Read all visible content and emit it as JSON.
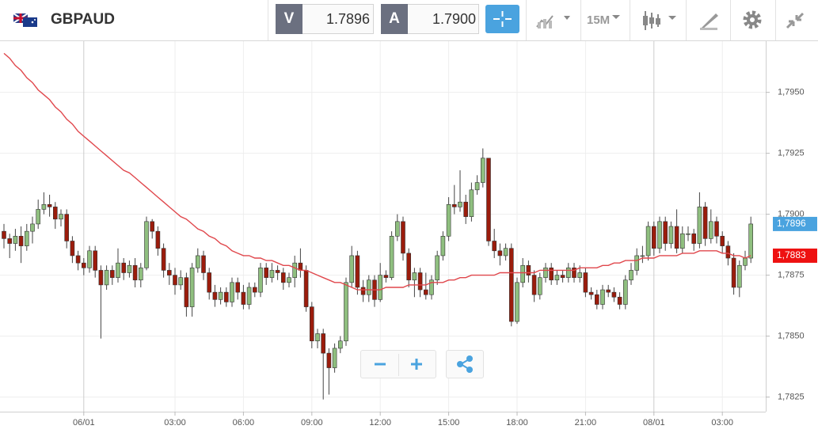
{
  "toolbar": {
    "symbol": "GBPAUD",
    "sell_label": "V",
    "sell_price": "1.7896",
    "buy_label": "A",
    "buy_price": "1.7900",
    "timeframe": "15M"
  },
  "chart_data": {
    "type": "candlestick",
    "categories": [
      null,
      null,
      null,
      null,
      null,
      null,
      null,
      null,
      null,
      null,
      null,
      null,
      null,
      null,
      "06/01",
      null,
      null,
      null,
      null,
      null,
      null,
      null,
      null,
      null,
      null,
      null,
      null,
      null,
      null,
      null,
      "03:00",
      null,
      null,
      null,
      null,
      null,
      null,
      null,
      null,
      null,
      null,
      null,
      "06:00",
      null,
      null,
      null,
      null,
      null,
      null,
      null,
      null,
      null,
      null,
      null,
      "09:00",
      null,
      null,
      null,
      null,
      null,
      null,
      null,
      null,
      null,
      null,
      null,
      "12:00",
      null,
      null,
      null,
      null,
      null,
      null,
      null,
      null,
      null,
      null,
      null,
      "15:00",
      null,
      null,
      null,
      null,
      null,
      null,
      null,
      null,
      null,
      null,
      null,
      "18:00",
      null,
      null,
      null,
      null,
      null,
      null,
      null,
      null,
      null,
      null,
      null,
      "21:00",
      null,
      null,
      null,
      null,
      null,
      null,
      null,
      null,
      null,
      null,
      null,
      "08/01",
      null,
      null,
      null,
      null,
      null,
      null,
      null,
      null,
      null,
      null,
      null,
      "03:00",
      null,
      null,
      null,
      null,
      null
    ],
    "open": [
      1.7893,
      1.789,
      1.7888,
      1.7891,
      1.7887,
      1.7893,
      1.7896,
      1.7902,
      1.7904,
      1.7903,
      1.7898,
      1.79,
      1.7889,
      1.7883,
      1.788,
      1.7878,
      1.7885,
      1.7877,
      1.7871,
      1.7877,
      1.7874,
      1.788,
      1.7876,
      1.7879,
      1.7873,
      1.7878,
      1.7897,
      1.7893,
      1.7886,
      1.7877,
      1.7875,
      1.7871,
      1.7874,
      1.7862,
      1.7878,
      1.7883,
      1.7876,
      1.7868,
      1.7865,
      1.7868,
      1.7864,
      1.7872,
      1.7868,
      1.7863,
      1.787,
      1.7868,
      1.7878,
      1.7874,
      1.7877,
      1.7876,
      1.7872,
      1.7874,
      1.788,
      1.7877,
      1.7862,
      1.7848,
      1.7851,
      1.7843,
      1.7837,
      1.7845,
      1.7848,
      1.7872,
      1.7883,
      1.787,
      1.7867,
      1.7873,
      1.7865,
      1.7875,
      1.7874,
      1.7891,
      1.7897,
      1.7884,
      1.7873,
      1.7876,
      1.7869,
      1.7867,
      1.7873,
      1.7883,
      1.7891,
      1.7904,
      1.7903,
      1.7905,
      1.7899,
      1.791,
      1.7913,
      1.7923,
      1.7889,
      1.7885,
      1.7883,
      1.7886,
      1.7856,
      1.7872,
      1.7879,
      1.7875,
      1.7867,
      1.7874,
      1.7878,
      1.7873,
      1.7875,
      1.7874,
      1.7878,
      1.7874,
      1.7876,
      1.7868,
      1.7867,
      1.7863,
      1.7869,
      1.7868,
      1.7866,
      1.7863,
      1.7873,
      1.7877,
      1.7883,
      1.7883,
      1.7895,
      1.7886,
      1.7897,
      1.7888,
      1.7895,
      1.7886,
      1.7892,
      1.7892,
      1.7888,
      1.7903,
      1.789,
      1.7897,
      1.7891,
      1.7887,
      1.7882,
      1.787,
      1.7879,
      1.7882
    ],
    "high": [
      1.7896,
      1.7892,
      1.7894,
      1.7895,
      1.7896,
      1.7899,
      1.7906,
      1.7909,
      1.7908,
      1.7905,
      1.7902,
      1.7902,
      1.7891,
      1.7885,
      1.7882,
      1.7887,
      1.7887,
      1.7879,
      1.7879,
      1.7879,
      1.7886,
      1.7882,
      1.7881,
      1.7882,
      1.788,
      1.7899,
      1.7898,
      1.7895,
      1.7888,
      1.788,
      1.7878,
      1.7877,
      1.7876,
      1.788,
      1.7886,
      1.7885,
      1.7878,
      1.7871,
      1.787,
      1.787,
      1.7874,
      1.7874,
      1.7871,
      1.7872,
      1.7872,
      1.788,
      1.788,
      1.788,
      1.7879,
      1.7878,
      1.7876,
      1.7883,
      1.7886,
      1.7879,
      1.7864,
      1.7853,
      1.7853,
      1.7845,
      1.7847,
      1.785,
      1.7874,
      1.7887,
      1.7885,
      1.7873,
      1.7875,
      1.7875,
      1.788,
      1.7877,
      1.7893,
      1.79,
      1.7899,
      1.7886,
      1.7878,
      1.7878,
      1.7876,
      1.7875,
      1.7885,
      1.7893,
      1.7907,
      1.7912,
      1.7918,
      1.7908,
      1.7913,
      1.7916,
      1.7927,
      1.7923,
      1.7894,
      1.7888,
      1.7888,
      1.7888,
      1.7874,
      1.7882,
      1.7881,
      1.7877,
      1.7876,
      1.788,
      1.788,
      1.7877,
      1.7877,
      1.788,
      1.788,
      1.7879,
      1.7878,
      1.787,
      1.7869,
      1.7871,
      1.7871,
      1.787,
      1.7868,
      1.7875,
      1.788,
      1.7886,
      1.7887,
      1.7897,
      1.7897,
      1.7899,
      1.7899,
      1.7897,
      1.7902,
      1.7895,
      1.7895,
      1.7894,
      1.7909,
      1.7905,
      1.7902,
      1.7899,
      1.7893,
      1.7889,
      1.7884,
      1.7881,
      1.7885,
      1.7899
    ],
    "low": [
      1.7886,
      1.7882,
      1.7885,
      1.788,
      1.7885,
      1.7888,
      1.7894,
      1.79,
      1.7899,
      1.7894,
      1.7895,
      1.7886,
      1.788,
      1.7877,
      1.7875,
      1.7876,
      1.7874,
      1.7849,
      1.7869,
      1.7871,
      1.7872,
      1.7873,
      1.7874,
      1.787,
      1.787,
      1.7877,
      1.789,
      1.7883,
      1.7874,
      1.7871,
      1.7867,
      1.7869,
      1.7858,
      1.7858,
      1.7876,
      1.7873,
      1.7865,
      1.7862,
      1.7863,
      1.7862,
      1.7862,
      1.7865,
      1.7861,
      1.7861,
      1.7866,
      1.7866,
      1.7871,
      1.7872,
      1.7873,
      1.7869,
      1.787,
      1.787,
      1.7874,
      1.786,
      1.7845,
      1.7845,
      1.7824,
      1.7826,
      1.7835,
      1.7843,
      1.7846,
      1.787,
      1.7867,
      1.7864,
      1.7864,
      1.7862,
      1.7864,
      1.7872,
      1.7873,
      1.7889,
      1.7881,
      1.787,
      1.7866,
      1.7866,
      1.7865,
      1.7865,
      1.7871,
      1.7881,
      1.7889,
      1.79,
      1.7901,
      1.7896,
      1.7897,
      1.7908,
      1.7911,
      1.7887,
      1.7882,
      1.7879,
      1.7881,
      1.7854,
      1.7855,
      1.787,
      1.7872,
      1.7864,
      1.7865,
      1.7872,
      1.7871,
      1.7871,
      1.7872,
      1.7872,
      1.7872,
      1.7872,
      1.7866,
      1.7865,
      1.7861,
      1.7861,
      1.7866,
      1.7864,
      1.7861,
      1.7861,
      1.7871,
      1.7875,
      1.788,
      1.7881,
      1.7883,
      1.7884,
      1.7885,
      1.7886,
      1.7884,
      1.7884,
      1.7889,
      1.7885,
      1.7886,
      1.7887,
      1.7888,
      1.7888,
      1.7884,
      1.7879,
      1.7867,
      1.7866,
      1.7877,
      1.788
    ],
    "close": [
      1.789,
      1.7888,
      1.7891,
      1.7887,
      1.7893,
      1.7896,
      1.7902,
      1.7904,
      1.7903,
      1.7898,
      1.79,
      1.7889,
      1.7883,
      1.788,
      1.7878,
      1.7885,
      1.7877,
      1.7871,
      1.7877,
      1.7874,
      1.788,
      1.7876,
      1.7879,
      1.7873,
      1.7878,
      1.7897,
      1.7893,
      1.7886,
      1.7877,
      1.7875,
      1.7871,
      1.7874,
      1.7862,
      1.7878,
      1.7883,
      1.7876,
      1.7868,
      1.7865,
      1.7868,
      1.7864,
      1.7872,
      1.7868,
      1.7863,
      1.787,
      1.7868,
      1.7878,
      1.7874,
      1.7877,
      1.7876,
      1.7872,
      1.7874,
      1.788,
      1.7877,
      1.7862,
      1.7848,
      1.7851,
      1.7843,
      1.7837,
      1.7845,
      1.7848,
      1.7872,
      1.7883,
      1.787,
      1.7867,
      1.7873,
      1.7865,
      1.7875,
      1.7874,
      1.7891,
      1.7897,
      1.7884,
      1.7873,
      1.7876,
      1.7869,
      1.7867,
      1.7873,
      1.7883,
      1.7891,
      1.7904,
      1.7903,
      1.7905,
      1.7899,
      1.791,
      1.7913,
      1.7923,
      1.7889,
      1.7885,
      1.7883,
      1.7886,
      1.7856,
      1.7872,
      1.7879,
      1.7875,
      1.7867,
      1.7874,
      1.7878,
      1.7873,
      1.7875,
      1.7874,
      1.7878,
      1.7874,
      1.7876,
      1.7868,
      1.7867,
      1.7863,
      1.7869,
      1.7868,
      1.7866,
      1.7863,
      1.7873,
      1.7877,
      1.7883,
      1.7883,
      1.7895,
      1.7886,
      1.7897,
      1.7888,
      1.7895,
      1.7886,
      1.7892,
      1.7892,
      1.7888,
      1.7903,
      1.789,
      1.7897,
      1.7891,
      1.7887,
      1.7882,
      1.787,
      1.7879,
      1.7882,
      1.7896
    ],
    "up_color": "#8fbf7f",
    "down_color": "#9b1c0c",
    "ma": {
      "color": "#e0474c",
      "values": [
        1.7966,
        1.7964,
        1.7961,
        1.7959,
        1.7956,
        1.7954,
        1.7951,
        1.7949,
        1.7947,
        1.7944,
        1.7942,
        1.7939,
        1.7937,
        1.7934,
        1.7932,
        1.793,
        1.7928,
        1.7926,
        1.7924,
        1.7922,
        1.792,
        1.7918,
        1.7917,
        1.7915,
        1.7913,
        1.7911,
        1.7909,
        1.7907,
        1.7905,
        1.7903,
        1.7901,
        1.7899,
        1.7898,
        1.7896,
        1.7894,
        1.7893,
        1.7891,
        1.789,
        1.7888,
        1.7887,
        1.7885,
        1.7884,
        1.7883,
        1.7883,
        1.7882,
        1.7882,
        1.7881,
        1.7881,
        1.788,
        1.7879,
        1.7879,
        1.7878,
        1.7877,
        1.7877,
        1.7876,
        1.7875,
        1.7874,
        1.7873,
        1.7872,
        1.7872,
        1.7871,
        1.787,
        1.7869,
        1.7869,
        1.7869,
        1.7869,
        1.7869,
        1.787,
        1.787,
        1.787,
        1.787,
        1.7871,
        1.7871,
        1.7871,
        1.7871,
        1.7872,
        1.7872,
        1.7872,
        1.7873,
        1.7873,
        1.7874,
        1.7874,
        1.7875,
        1.7875,
        1.7875,
        1.7875,
        1.7875,
        1.7876,
        1.7876,
        1.7876,
        1.7876,
        1.7876,
        1.7876,
        1.7876,
        1.7877,
        1.7877,
        1.7877,
        1.7877,
        1.7877,
        1.7877,
        1.7877,
        1.7878,
        1.7878,
        1.7878,
        1.7878,
        1.7879,
        1.7879,
        1.788,
        1.788,
        1.7881,
        1.7881,
        1.7881,
        1.7882,
        1.7882,
        1.7882,
        1.7883,
        1.7883,
        1.7883,
        1.7883,
        1.7884,
        1.7884,
        1.7884,
        1.7885,
        1.7885,
        1.7885,
        1.7885,
        1.7884,
        1.7884,
        1.7883,
        1.7883,
        1.7882,
        1.7883
      ]
    },
    "ylim": [
      1.7819,
      1.7971
    ],
    "yticks": [
      {
        "value": 1.7825,
        "label": "1,7825"
      },
      {
        "value": 1.785,
        "label": "1,7850"
      },
      {
        "value": 1.7875,
        "label": "1,7875"
      },
      {
        "value": 1.79,
        "label": "1,7900"
      },
      {
        "value": 1.7925,
        "label": "1,7925"
      },
      {
        "value": 1.795,
        "label": "1,7950"
      }
    ],
    "price_tags": [
      {
        "value": 1.7896,
        "label": "1,7896",
        "color": "#4aa3df"
      },
      {
        "value": 1.7883,
        "label": "1,7883",
        "color": "#ee1111"
      }
    ],
    "grid": true
  }
}
